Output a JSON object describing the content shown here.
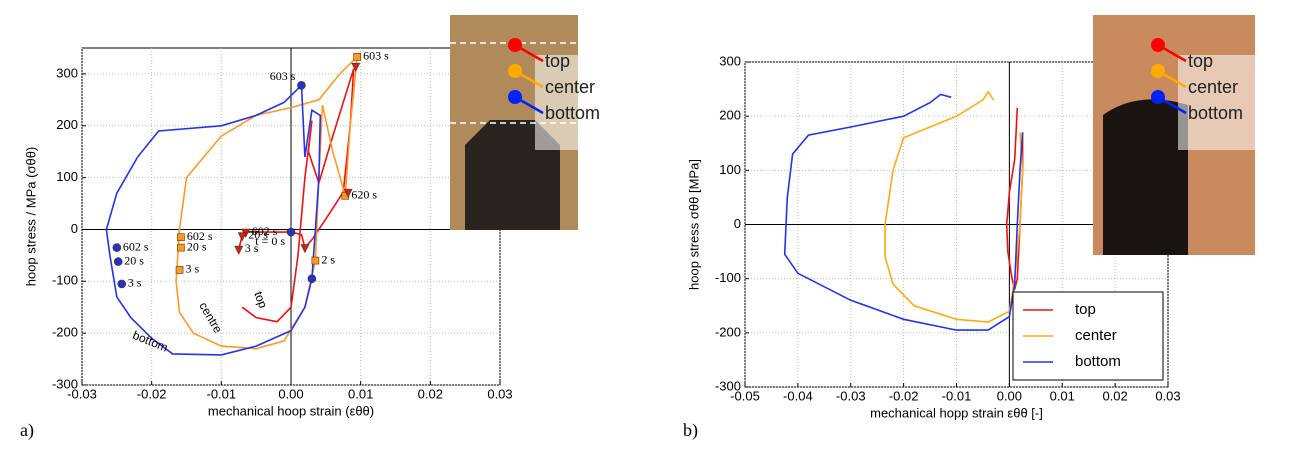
{
  "panel_labels": [
    "a)",
    "b)"
  ],
  "chart_data": [
    {
      "type": "line",
      "x_label": "mechanical hoop strain (εθθ)",
      "y_label": "hoop stress / MPa (σθθ)",
      "xlim": [
        -0.03,
        0.03
      ],
      "ylim": [
        -300,
        350
      ],
      "xticks": [
        -0.03,
        -0.02,
        -0.01,
        {
          "value": 0,
          "label": "0.00"
        },
        0.01,
        0.02,
        0.03
      ],
      "yticks": [
        -300,
        -200,
        -100,
        0,
        100,
        200,
        300
      ],
      "grid": true,
      "zero_lines": true,
      "series": [
        {
          "name": "top",
          "color": "#ee1111",
          "x": [
            -0.007,
            -0.005,
            -0.002,
            0.0,
            0.001,
            0.002,
            0.003,
            0.0025,
            0.004,
            0.006,
            0.009,
            0.0085,
            0.0075,
            0.005,
            0.003,
            0.002,
            0.0015,
            0.0,
            -0.0065,
            -0.007,
            -0.0075
          ],
          "values": [
            -150,
            -170,
            -178,
            -150,
            -50,
            100,
            210,
            150,
            90,
            180,
            310,
            200,
            72,
            20,
            -20,
            -35,
            -10,
            -5,
            -5,
            -12,
            -38
          ]
        },
        {
          "name": "centre",
          "color": "#ff9922",
          "x": [
            0.0095,
            0.007,
            0.004,
            0.0,
            -0.005,
            -0.01,
            -0.015,
            -0.016,
            -0.0165,
            -0.016,
            -0.014,
            -0.01,
            -0.005,
            -0.001,
            0.002,
            0.003,
            0.0035,
            0.004,
            0.0045,
            0.006,
            0.0078,
            0.0085,
            0.0095
          ],
          "values": [
            333,
            300,
            250,
            235,
            220,
            180,
            100,
            0,
            -100,
            -160,
            -200,
            -225,
            -230,
            -215,
            -150,
            -90,
            -60,
            100,
            240,
            150,
            65,
            200,
            333
          ]
        },
        {
          "name": "bottom",
          "color": "#2233ee",
          "x": [
            0.0015,
            -0.001,
            -0.005,
            -0.01,
            -0.019,
            -0.022,
            -0.025,
            -0.0265,
            -0.026,
            -0.025,
            -0.023,
            -0.02,
            -0.017,
            -0.01,
            -0.005,
            0.0,
            0.002,
            0.003,
            0.0035,
            0.004,
            0.0042,
            0.003,
            0.002,
            0.0015
          ],
          "values": [
            278,
            245,
            220,
            200,
            190,
            140,
            70,
            0,
            -50,
            -130,
            -170,
            -210,
            -240,
            -242,
            -225,
            -195,
            -150,
            -95,
            0,
            100,
            220,
            230,
            140,
            278
          ]
        }
      ],
      "markers": [
        {
          "color": "#ff9922",
          "shape": "square",
          "x": [
            -0.0158,
            -0.0158,
            -0.016,
            0.0095,
            0.0078,
            0.0035
          ],
          "values": [
            -15,
            -35,
            -78,
            333,
            65,
            -60
          ],
          "labels": [
            "602 s",
            "20 s",
            "3 s",
            "603 s",
            "620 s",
            "2 s"
          ]
        },
        {
          "color": "#cc2222",
          "shape": "triangle",
          "x": [
            -0.0065,
            -0.007,
            -0.0075,
            0.0093,
            0.0082,
            0.002
          ],
          "values": [
            -5,
            -12,
            -38,
            315,
            72,
            -35
          ],
          "labels": [
            "602 s",
            "20 s",
            "3 s",
            null,
            null,
            null
          ]
        },
        {
          "color": "#2233cc",
          "shape": "circle",
          "x": [
            -0.025,
            -0.0248,
            -0.0243,
            0.0015,
            0.0,
            0.003
          ],
          "values": [
            -35,
            -62,
            -105,
            278,
            -5,
            -95
          ],
          "labels": [
            "602 s",
            "20 s",
            "3 s",
            "603 s",
            "t = 0 s",
            null
          ]
        }
      ],
      "inset": {
        "labels": [
          "top",
          "center",
          "bottom"
        ],
        "colors": [
          "#ff0000",
          "#ffaa00",
          "#0022ff"
        ]
      }
    },
    {
      "type": "line",
      "x_label": "mechanical hopp strain εθθ [-]",
      "y_label": "hoop stress σθθ [MPa]",
      "xlim": [
        -0.05,
        0.03
      ],
      "ylim": [
        -300,
        300
      ],
      "xticks": [
        -0.05,
        -0.04,
        -0.03,
        -0.02,
        -0.01,
        {
          "value": 0,
          "label": "0.00"
        },
        0.01,
        0.02,
        0.03
      ],
      "yticks": [
        -300,
        -200,
        -100,
        0,
        100,
        200,
        300
      ],
      "grid": true,
      "zero_lines": true,
      "legend": "lower right",
      "series": [
        {
          "name": "top",
          "color": "#ee1111",
          "x": [
            0.0015,
            0.001,
            0.0,
            -0.0005,
            -0.0003,
            0.0005,
            0.001,
            0.0015,
            0.002,
            0.0025,
            0.0025
          ],
          "values": [
            215,
            120,
            60,
            0,
            -50,
            -100,
            -120,
            -100,
            0,
            100,
            170
          ]
        },
        {
          "name": "center",
          "color": "#ffaa11",
          "x": [
            -0.003,
            -0.004,
            -0.005,
            -0.01,
            -0.02,
            -0.022,
            -0.0235,
            -0.0235,
            -0.022,
            -0.018,
            -0.01,
            -0.004,
            0.0,
            0.001,
            0.002,
            0.0025,
            0.002
          ],
          "values": [
            230,
            245,
            230,
            200,
            160,
            100,
            0,
            -60,
            -110,
            -150,
            -175,
            -180,
            -160,
            -100,
            0,
            100,
            170
          ]
        },
        {
          "name": "bottom",
          "color": "#2233ee",
          "x": [
            -0.011,
            -0.013,
            -0.015,
            -0.02,
            -0.03,
            -0.038,
            -0.041,
            -0.042,
            -0.0425,
            -0.04,
            -0.03,
            -0.02,
            -0.01,
            -0.004,
            0.0,
            0.001,
            0.0015,
            0.002,
            0.0025
          ],
          "values": [
            235,
            240,
            225,
            200,
            180,
            165,
            130,
            50,
            -55,
            -90,
            -140,
            -175,
            -195,
            -195,
            -170,
            -110,
            0,
            100,
            170
          ]
        }
      ],
      "inset": {
        "labels": [
          "top",
          "center",
          "bottom"
        ],
        "colors": [
          "#ff0000",
          "#ffaa00",
          "#0022ff"
        ]
      }
    }
  ]
}
